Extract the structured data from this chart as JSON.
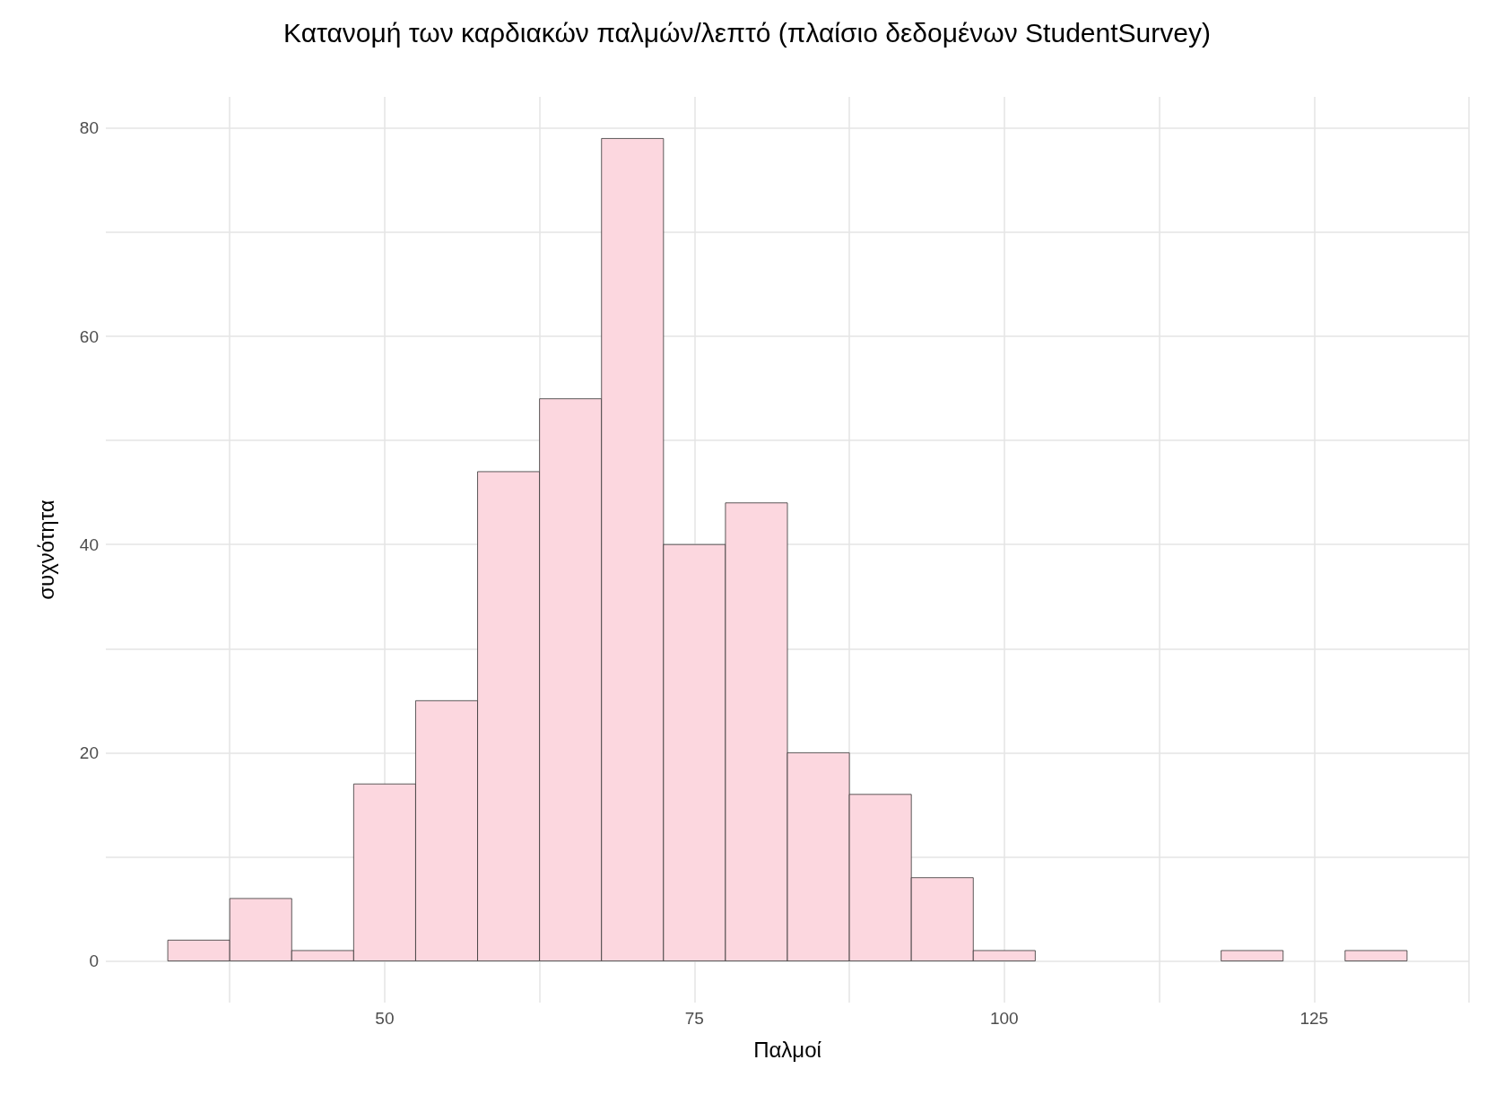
{
  "chart_data": {
    "type": "histogram",
    "title": "Κατανομή των καρδιακών παλμών/λεπτό (πλαίσιο δεδομένων StudentSurvey)",
    "xlabel": "Παλμοί",
    "ylabel": "συχνότητα",
    "bins": [
      32.5,
      37.5,
      42.5,
      47.5,
      52.5,
      57.5,
      62.5,
      67.5,
      72.5,
      77.5,
      82.5,
      87.5,
      92.5,
      97.5,
      102.5,
      107.5,
      112.5,
      117.5,
      122.5,
      127.5,
      132.5
    ],
    "values": [
      2,
      6,
      1,
      17,
      25,
      47,
      54,
      79,
      40,
      44,
      20,
      16,
      8,
      1,
      0,
      0,
      0,
      1,
      0,
      1
    ],
    "color": "#fcd7df",
    "xlim": [
      27.5,
      137.5
    ],
    "ylim": [
      -4,
      83
    ],
    "xticks": [
      {
        "value": 37.5,
        "label": null
      },
      50,
      {
        "value": 62.5,
        "label": null
      },
      75,
      {
        "value": 87.5,
        "label": null
      },
      100,
      {
        "value": 112.5,
        "label": null
      },
      125,
      {
        "value": 137.5,
        "label": null
      }
    ],
    "yticks": [
      0,
      {
        "value": 10,
        "label": null
      },
      20,
      {
        "value": 30,
        "label": null
      },
      40,
      {
        "value": 50,
        "label": null
      },
      60,
      {
        "value": 70,
        "label": null
      },
      80
    ],
    "grid": true
  }
}
